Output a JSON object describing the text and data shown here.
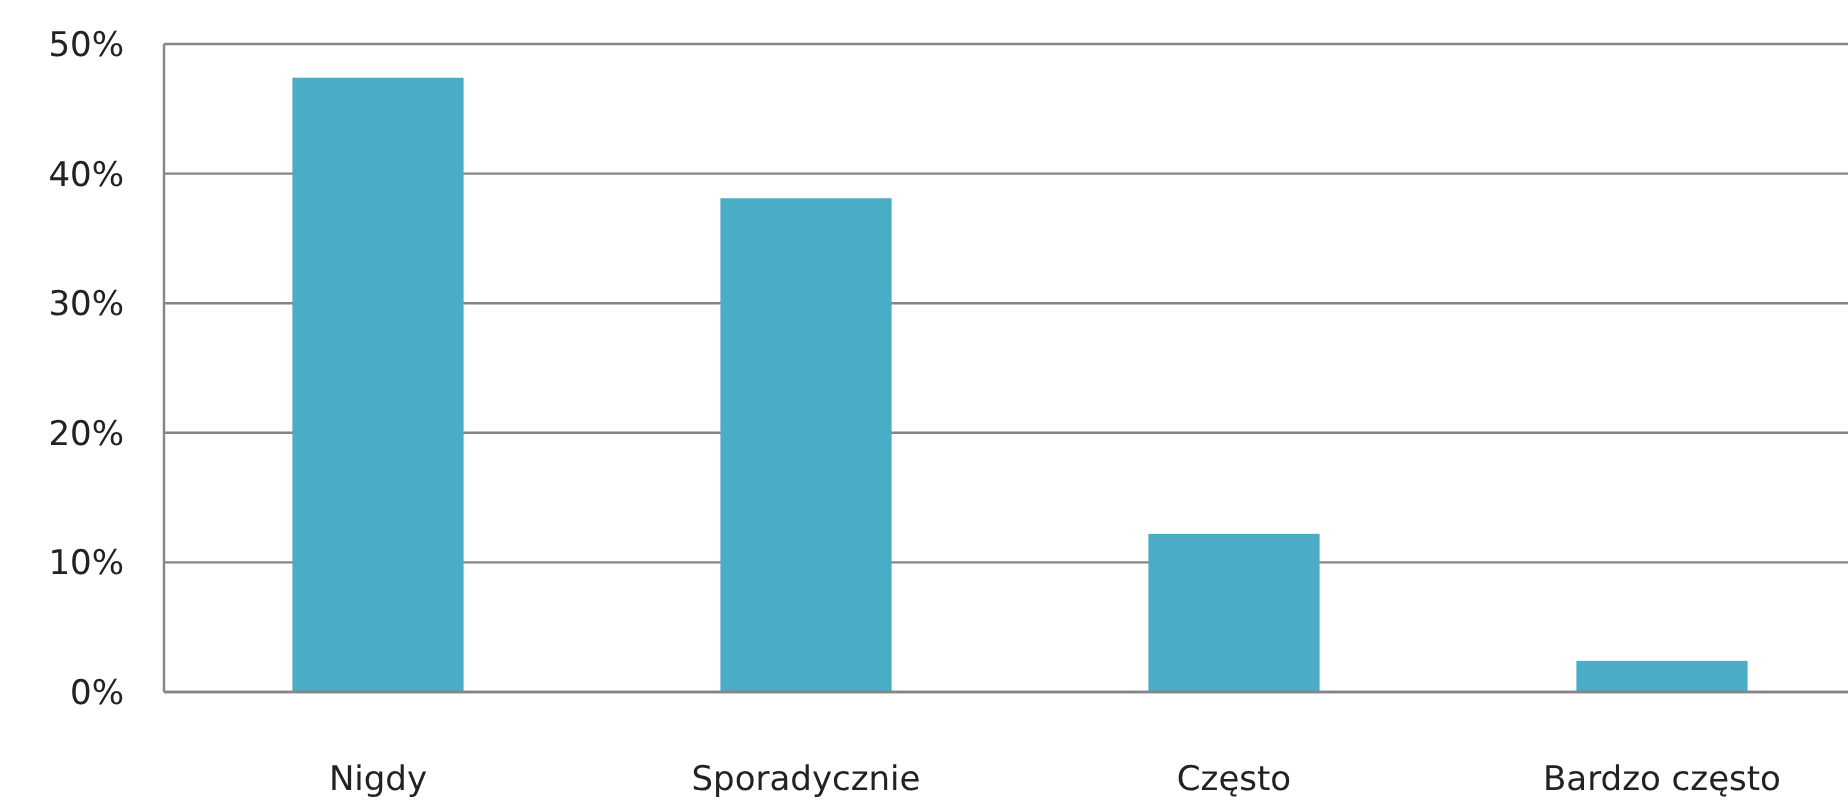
{
  "chart_data": {
    "type": "bar",
    "categories": [
      "Nigdy",
      "Sporadycznie",
      "Często",
      "Bardzo często"
    ],
    "values": [
      47.4,
      38.1,
      12.2,
      2.4
    ],
    "color": "#4bacc6",
    "ylim": [
      0,
      50
    ],
    "yticks": [
      {
        "value": 0,
        "label": "0%"
      },
      {
        "value": 10,
        "label": "10%"
      },
      {
        "value": 20,
        "label": "20%"
      },
      {
        "value": 30,
        "label": "30%"
      },
      {
        "value": 40,
        "label": "40%"
      },
      {
        "value": 50,
        "label": "50%"
      }
    ],
    "grid": "y"
  }
}
